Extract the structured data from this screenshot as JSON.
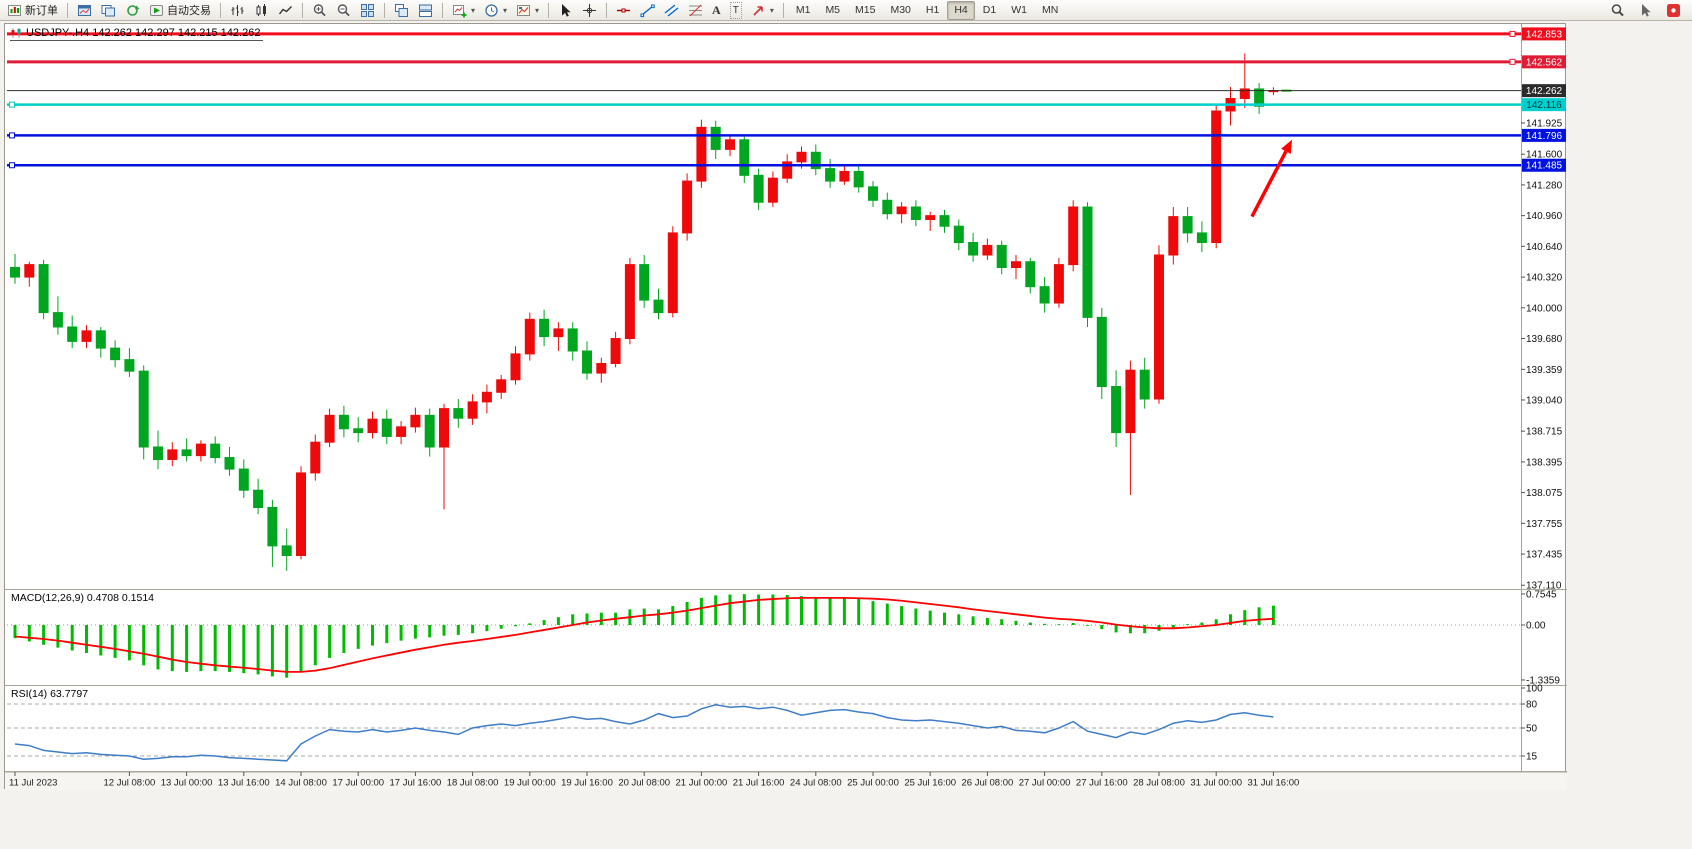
{
  "toolbar": {
    "new_order": "新订单",
    "auto_trading": "自动交易",
    "timeframes": [
      "M1",
      "M5",
      "M15",
      "M30",
      "H1",
      "H4",
      "D1",
      "W1",
      "MN"
    ],
    "active_timeframe": "H4"
  },
  "chart": {
    "title": "USDJPY-.H4 142.262 142.297 142.215 142.262",
    "symbol": "USDJPY-",
    "period": "H4"
  },
  "icons": {
    "new-order-icon": "candlestick-page",
    "charts-icon": "chart-window",
    "profiles-icon": "stacked-windows",
    "refresh-icon": "circular-arrow",
    "auto-trading-icon": "play-triangle",
    "bar-chart-icon": "ohlc-bars",
    "candlestick-icon": "candles",
    "line-chart-icon": "zigzag-line",
    "zoom-in-icon": "magnifier-plus",
    "zoom-out-icon": "magnifier-minus",
    "tile-windows-icon": "grid-2x2",
    "cascade-windows-icon": "offset-windows",
    "tile-horizontal-icon": "split-windows",
    "new-chart-icon": "chart-plus",
    "period-icon": "clock",
    "template-icon": "chart-palette",
    "cursor-icon": "pointer-arrow",
    "crosshair-icon": "crosshair",
    "horizontal-line-icon": "horizontal-line",
    "trendline-icon": "diagonal-line",
    "channel-icon": "parallel-lines",
    "fibonacci-icon": "fibo-levels",
    "text-icon": "letter-A",
    "label-icon": "letter-T",
    "shapes-icon": "arrow-up-right",
    "search-icon": "magnifier",
    "pointer-icon": "pointer-arrow",
    "notification-icon": "red-badge",
    "symbol-chart-icon": "mini-candles",
    "dropdown-caret": "triangle-down"
  },
  "chart_data": {
    "type": "candlestick",
    "symbol": "USDJPY-",
    "period": "H4",
    "up_color": "#ee0a0a",
    "down_color": "#00a520",
    "price_axis": [
      "141.925",
      "141.600",
      "141.280",
      "140.960",
      "140.640",
      "140.320",
      "140.000",
      "139.680",
      "139.359",
      "139.040",
      "138.715",
      "138.395",
      "138.075",
      "137.755",
      "137.435",
      "137.110"
    ],
    "time_axis": {
      "labels": [
        "11 Jul 2023",
        "12 Jul 08:00",
        "13 Jul 00:00",
        "13 Jul 16:00",
        "14 Jul 08:00",
        "17 Jul 00:00",
        "17 Jul 16:00",
        "18 Jul 08:00",
        "19 Jul 00:00",
        "19 Jul 16:00",
        "20 Jul 08:00",
        "21 Jul 00:00",
        "21 Jul 16:00",
        "24 Jul 08:00",
        "25 Jul 00:00",
        "25 Jul 16:00",
        "26 Jul 08:00",
        "27 Jul 00:00",
        "27 Jul 16:00",
        "28 Jul 08:00",
        "31 Jul 00:00",
        "31 Jul 16:00"
      ],
      "bars": [
        0,
        8,
        12,
        16,
        20,
        24,
        28,
        32,
        36,
        40,
        44,
        48,
        52,
        56,
        60,
        64,
        68,
        72,
        76,
        80,
        84,
        88
      ]
    },
    "candles": [
      [
        140.42,
        140.56,
        140.25,
        140.32
      ],
      [
        140.32,
        140.48,
        140.22,
        140.45
      ],
      [
        140.45,
        140.5,
        139.88,
        139.95
      ],
      [
        139.95,
        140.12,
        139.72,
        139.8
      ],
      [
        139.8,
        139.92,
        139.58,
        139.65
      ],
      [
        139.65,
        139.82,
        139.58,
        139.76
      ],
      [
        139.76,
        139.8,
        139.48,
        139.58
      ],
      [
        139.58,
        139.66,
        139.38,
        139.46
      ],
      [
        139.46,
        139.58,
        139.28,
        139.34
      ],
      [
        139.34,
        139.4,
        138.42,
        138.55
      ],
      [
        138.55,
        138.72,
        138.32,
        138.42
      ],
      [
        138.42,
        138.6,
        138.35,
        138.52
      ],
      [
        138.52,
        138.64,
        138.4,
        138.46
      ],
      [
        138.46,
        138.62,
        138.4,
        138.58
      ],
      [
        138.58,
        138.66,
        138.38,
        138.44
      ],
      [
        138.44,
        138.55,
        138.25,
        138.32
      ],
      [
        138.32,
        138.42,
        138.02,
        138.1
      ],
      [
        138.1,
        138.22,
        137.85,
        137.92
      ],
      [
        137.92,
        138.0,
        137.3,
        137.52
      ],
      [
        137.52,
        137.7,
        137.26,
        137.42
      ],
      [
        137.42,
        138.35,
        137.38,
        138.28
      ],
      [
        138.28,
        138.68,
        138.2,
        138.6
      ],
      [
        138.6,
        138.95,
        138.55,
        138.88
      ],
      [
        138.88,
        138.98,
        138.65,
        138.74
      ],
      [
        138.74,
        138.86,
        138.6,
        138.7
      ],
      [
        138.7,
        138.92,
        138.64,
        138.84
      ],
      [
        138.84,
        138.94,
        138.58,
        138.66
      ],
      [
        138.66,
        138.82,
        138.58,
        138.76
      ],
      [
        138.76,
        138.96,
        138.7,
        138.88
      ],
      [
        138.88,
        138.95,
        138.45,
        138.55
      ],
      [
        138.55,
        139.0,
        137.9,
        138.95
      ],
      [
        138.95,
        139.05,
        138.75,
        138.85
      ],
      [
        138.85,
        139.1,
        138.78,
        139.02
      ],
      [
        139.02,
        139.2,
        138.9,
        139.12
      ],
      [
        139.12,
        139.3,
        139.05,
        139.25
      ],
      [
        139.25,
        139.6,
        139.2,
        139.52
      ],
      [
        139.52,
        139.95,
        139.45,
        139.88
      ],
      [
        139.88,
        139.98,
        139.6,
        139.7
      ],
      [
        139.7,
        139.85,
        139.55,
        139.78
      ],
      [
        139.78,
        139.85,
        139.45,
        139.55
      ],
      [
        139.55,
        139.65,
        139.25,
        139.32
      ],
      [
        139.32,
        139.48,
        139.22,
        139.42
      ],
      [
        139.42,
        139.75,
        139.38,
        139.68
      ],
      [
        139.68,
        140.52,
        139.62,
        140.45
      ],
      [
        140.45,
        140.55,
        140.0,
        140.08
      ],
      [
        140.08,
        140.2,
        139.88,
        139.95
      ],
      [
        139.95,
        140.85,
        139.9,
        140.78
      ],
      [
        140.78,
        141.4,
        140.7,
        141.32
      ],
      [
        141.32,
        141.96,
        141.25,
        141.88
      ],
      [
        141.88,
        141.95,
        141.55,
        141.65
      ],
      [
        141.65,
        141.8,
        141.58,
        141.75
      ],
      [
        141.75,
        141.8,
        141.3,
        141.38
      ],
      [
        141.38,
        141.45,
        141.02,
        141.1
      ],
      [
        141.1,
        141.42,
        141.05,
        141.35
      ],
      [
        141.35,
        141.6,
        141.3,
        141.52
      ],
      [
        141.52,
        141.68,
        141.45,
        141.62
      ],
      [
        141.62,
        141.7,
        141.38,
        141.45
      ],
      [
        141.45,
        141.55,
        141.25,
        141.32
      ],
      [
        141.32,
        141.48,
        141.28,
        141.42
      ],
      [
        141.42,
        141.5,
        141.2,
        141.26
      ],
      [
        141.26,
        141.32,
        141.05,
        141.12
      ],
      [
        141.12,
        141.2,
        140.92,
        140.98
      ],
      [
        140.98,
        141.1,
        140.88,
        141.05
      ],
      [
        141.05,
        141.12,
        140.85,
        140.92
      ],
      [
        140.92,
        141.0,
        140.8,
        140.96
      ],
      [
        140.96,
        141.02,
        140.78,
        140.85
      ],
      [
        140.85,
        140.92,
        140.6,
        140.68
      ],
      [
        140.68,
        140.78,
        140.48,
        140.55
      ],
      [
        140.55,
        140.72,
        140.5,
        140.65
      ],
      [
        140.65,
        140.7,
        140.35,
        140.42
      ],
      [
        140.42,
        140.55,
        140.3,
        140.48
      ],
      [
        140.48,
        140.52,
        140.15,
        140.22
      ],
      [
        140.22,
        140.32,
        139.95,
        140.05
      ],
      [
        140.05,
        140.52,
        140.0,
        140.45
      ],
      [
        140.45,
        141.12,
        140.38,
        141.05
      ],
      [
        141.05,
        141.1,
        139.8,
        139.9
      ],
      [
        139.9,
        140.0,
        139.05,
        139.18
      ],
      [
        139.18,
        139.35,
        138.55,
        138.7
      ],
      [
        138.7,
        139.45,
        138.05,
        139.35
      ],
      [
        139.35,
        139.48,
        138.95,
        139.05
      ],
      [
        139.05,
        140.65,
        139.0,
        140.55
      ],
      [
        140.55,
        141.05,
        140.45,
        140.95
      ],
      [
        140.95,
        141.05,
        140.68,
        140.78
      ],
      [
        140.78,
        140.9,
        140.58,
        140.68
      ],
      [
        140.68,
        142.12,
        140.62,
        142.05
      ],
      [
        142.05,
        142.3,
        141.9,
        142.18
      ],
      [
        142.18,
        142.65,
        142.08,
        142.28
      ],
      [
        142.28,
        142.34,
        142.02,
        142.1
      ],
      [
        142.262,
        142.297,
        142.215,
        142.262
      ]
    ],
    "hlines": [
      {
        "price": 142.853,
        "tag": "142.853",
        "color": "#f20d1d",
        "width": 3,
        "tag_bg": "#f20d1d",
        "tag_fg": "#ffffff",
        "handle_side": "right"
      },
      {
        "price": 142.562,
        "tag": "142.562",
        "color": "#e11b34",
        "width": 3,
        "tag_bg": "#e11b34",
        "tag_fg": "#ffffff",
        "handle_side": "right"
      },
      {
        "price": 142.262,
        "tag": "142.262",
        "color": "#2b2b2b",
        "width": 1,
        "tag_bg": "#2b2b2b",
        "tag_fg": "#ffffff",
        "handle_side": "none",
        "role": "bid-line"
      },
      {
        "price": 142.116,
        "tag": "142.116",
        "color": "#00cfcf",
        "width": 2.5,
        "tag_bg": "#00cfcf",
        "tag_fg": "#003a3a",
        "handle_side": "left"
      },
      {
        "price": 141.796,
        "tag": "141.796",
        "color": "#0011e0",
        "width": 2.5,
        "tag_bg": "#0011e0",
        "tag_fg": "#ffffff",
        "handle_side": "left"
      },
      {
        "price": 141.485,
        "tag": "141.485",
        "color": "#0011e0",
        "width": 2.5,
        "tag_bg": "#0011e0",
        "tag_fg": "#ffffff",
        "handle_side": "left"
      }
    ],
    "bid_marker_color": "#00b400",
    "arrow": {
      "color": "#ff0000",
      "from": {
        "bar": 86.5,
        "price": 140.95
      },
      "to": {
        "bar": 89.3,
        "price": 141.75
      }
    },
    "macd": {
      "label": "MACD(12,26,9) 0.4708 0.1514",
      "scale": [
        "0.7545",
        "0.00",
        "-1.3359"
      ],
      "hist_color": "#00bb00",
      "signal_color": "#ff0000",
      "histogram": [
        -0.32,
        -0.4,
        -0.48,
        -0.55,
        -0.62,
        -0.68,
        -0.74,
        -0.8,
        -0.86,
        -0.98,
        -1.08,
        -1.12,
        -1.14,
        -1.12,
        -1.12,
        -1.14,
        -1.17,
        -1.2,
        -1.25,
        -1.28,
        -1.15,
        -0.98,
        -0.8,
        -0.68,
        -0.58,
        -0.5,
        -0.44,
        -0.38,
        -0.33,
        -0.3,
        -0.26,
        -0.24,
        -0.2,
        -0.15,
        -0.09,
        -0.03,
        0.04,
        0.12,
        0.19,
        0.26,
        0.28,
        0.3,
        0.3,
        0.38,
        0.4,
        0.38,
        0.46,
        0.56,
        0.66,
        0.72,
        0.74,
        0.75,
        0.74,
        0.74,
        0.73,
        0.7,
        0.68,
        0.67,
        0.66,
        0.63,
        0.58,
        0.52,
        0.46,
        0.4,
        0.35,
        0.3,
        0.26,
        0.21,
        0.17,
        0.14,
        0.1,
        0.06,
        0.03,
        0.02,
        0.05,
        -0.02,
        -0.1,
        -0.18,
        -0.2,
        -0.2,
        -0.14,
        -0.06,
        0.02,
        0.06,
        0.14,
        0.26,
        0.36,
        0.43,
        0.4708
      ],
      "signal": [
        -0.28,
        -0.31,
        -0.34,
        -0.38,
        -0.43,
        -0.48,
        -0.53,
        -0.58,
        -0.64,
        -0.7,
        -0.77,
        -0.84,
        -0.9,
        -0.94,
        -0.98,
        -1.01,
        -1.04,
        -1.07,
        -1.11,
        -1.14,
        -1.14,
        -1.11,
        -1.05,
        -0.97,
        -0.89,
        -0.81,
        -0.74,
        -0.67,
        -0.6,
        -0.54,
        -0.48,
        -0.43,
        -0.39,
        -0.34,
        -0.29,
        -0.24,
        -0.18,
        -0.12,
        -0.06,
        0.0,
        0.06,
        0.11,
        0.15,
        0.19,
        0.23,
        0.26,
        0.3,
        0.35,
        0.41,
        0.47,
        0.53,
        0.57,
        0.61,
        0.63,
        0.65,
        0.66,
        0.66,
        0.66,
        0.66,
        0.65,
        0.64,
        0.62,
        0.59,
        0.55,
        0.51,
        0.47,
        0.43,
        0.38,
        0.34,
        0.3,
        0.26,
        0.22,
        0.18,
        0.15,
        0.13,
        0.1,
        0.06,
        0.01,
        -0.03,
        -0.06,
        -0.08,
        -0.08,
        -0.06,
        -0.03,
        0.0,
        0.05,
        0.1,
        0.13,
        0.1514
      ]
    },
    "rsi": {
      "label": "RSI(14) 63.7797",
      "scale": [
        "100",
        "80",
        "50",
        "15"
      ],
      "levels": [
        80,
        50,
        15
      ],
      "color": "#3e7dc8",
      "values": [
        30,
        28,
        22,
        20,
        18,
        19,
        17,
        16,
        15,
        11,
        12,
        14,
        14,
        16,
        15,
        13,
        12,
        11,
        10,
        9,
        30,
        40,
        48,
        46,
        45,
        48,
        45,
        47,
        50,
        47,
        45,
        42,
        50,
        53,
        55,
        53,
        56,
        58,
        61,
        64,
        61,
        62,
        58,
        55,
        60,
        68,
        63,
        65,
        74,
        79,
        76,
        77,
        74,
        76,
        72,
        66,
        69,
        72,
        73,
        70,
        68,
        63,
        60,
        59,
        60,
        58,
        56,
        53,
        50,
        52,
        47,
        46,
        44,
        50,
        58,
        46,
        42,
        38,
        45,
        42,
        48,
        56,
        59,
        57,
        60,
        67,
        69,
        66,
        63.78
      ]
    }
  }
}
